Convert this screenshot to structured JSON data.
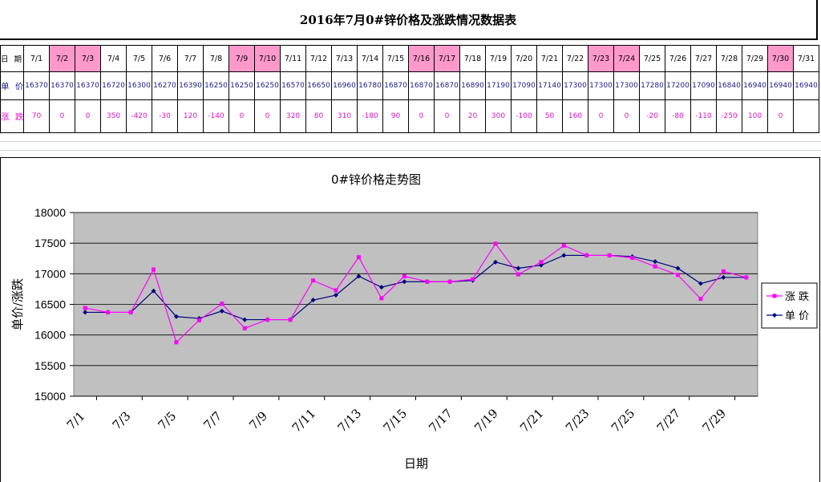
{
  "title": "2016年7月0#锌价格及涨跌情况数据表",
  "table": {
    "row_labels": {
      "date": "日 期",
      "price": "单 价",
      "change": "涨 跌"
    },
    "dates": [
      "7/1",
      "7/2",
      "7/3",
      "7/4",
      "7/5",
      "7/6",
      "7/7",
      "7/8",
      "7/9",
      "7/10",
      "7/11",
      "7/12",
      "7/13",
      "7/14",
      "7/15",
      "7/16",
      "7/17",
      "7/18",
      "7/19",
      "7/20",
      "7/21",
      "7/22",
      "7/23",
      "7/24",
      "7/25",
      "7/26",
      "7/27",
      "7/28",
      "7/29",
      "7/30",
      "7/31"
    ],
    "weekend": [
      false,
      true,
      true,
      false,
      false,
      false,
      false,
      false,
      true,
      true,
      false,
      false,
      false,
      false,
      false,
      true,
      true,
      false,
      false,
      false,
      false,
      false,
      true,
      true,
      false,
      false,
      false,
      false,
      false,
      true,
      false
    ],
    "prices": [
      "16370",
      "16370",
      "16370",
      "16720",
      "16300",
      "16270",
      "16390",
      "16250",
      "16250",
      "16250",
      "16570",
      "16650",
      "16960",
      "16780",
      "16870",
      "16870",
      "16870",
      "16890",
      "17190",
      "17090",
      "17140",
      "17300",
      "17300",
      "17300",
      "17280",
      "17200",
      "17090",
      "16840",
      "16940",
      "16940",
      "16940"
    ],
    "changes": [
      "70",
      "0",
      "0",
      "350",
      "-420",
      "-30",
      "120",
      "-140",
      "0",
      "0",
      "320",
      "80",
      "310",
      "-180",
      "90",
      "0",
      "0",
      "20",
      "300",
      "-100",
      "50",
      "160",
      "0",
      "0",
      "-20",
      "-80",
      "-110",
      "-250",
      "100",
      "0",
      ""
    ]
  },
  "colors": {
    "weekend_fill": "#ff99cc",
    "plot_bg": "#c0c0c0",
    "price_line": "#000080",
    "change_line": "#ff00ff"
  },
  "chart_data": {
    "type": "line",
    "title": "0#锌价格走势图",
    "xlabel": "日期",
    "ylabel": "单价/涨跌",
    "ylim": [
      15000,
      18000
    ],
    "yticks": [
      "15000",
      "15500",
      "16000",
      "16500",
      "17000",
      "17500",
      "18000"
    ],
    "xticklabels": [
      "7/1",
      "7/3",
      "7/5",
      "7/7",
      "7/9",
      "7/11",
      "7/13",
      "7/15",
      "7/17",
      "7/19",
      "7/21",
      "7/23",
      "7/25",
      "7/27",
      "7/29"
    ],
    "legend_position": "right",
    "series": [
      {
        "name": "涨 跌",
        "color": "#ff00ff",
        "marker": "square",
        "values": [
          16440,
          16370,
          16370,
          17070,
          15880,
          16240,
          16510,
          16110,
          16250,
          16250,
          16890,
          16730,
          17270,
          16600,
          16960,
          16870,
          16870,
          16910,
          17490,
          16990,
          17190,
          17460,
          17300,
          17300,
          17260,
          17120,
          16980,
          16590,
          17040,
          16940
        ]
      },
      {
        "name": "单 价",
        "color": "#000080",
        "marker": "diamond",
        "values": [
          16370,
          16370,
          16370,
          16720,
          16300,
          16270,
          16390,
          16250,
          16250,
          16250,
          16570,
          16650,
          16960,
          16780,
          16870,
          16870,
          16870,
          16890,
          17190,
          17090,
          17140,
          17300,
          17300,
          17300,
          17280,
          17200,
          17090,
          16840,
          16940,
          16940
        ]
      }
    ]
  }
}
